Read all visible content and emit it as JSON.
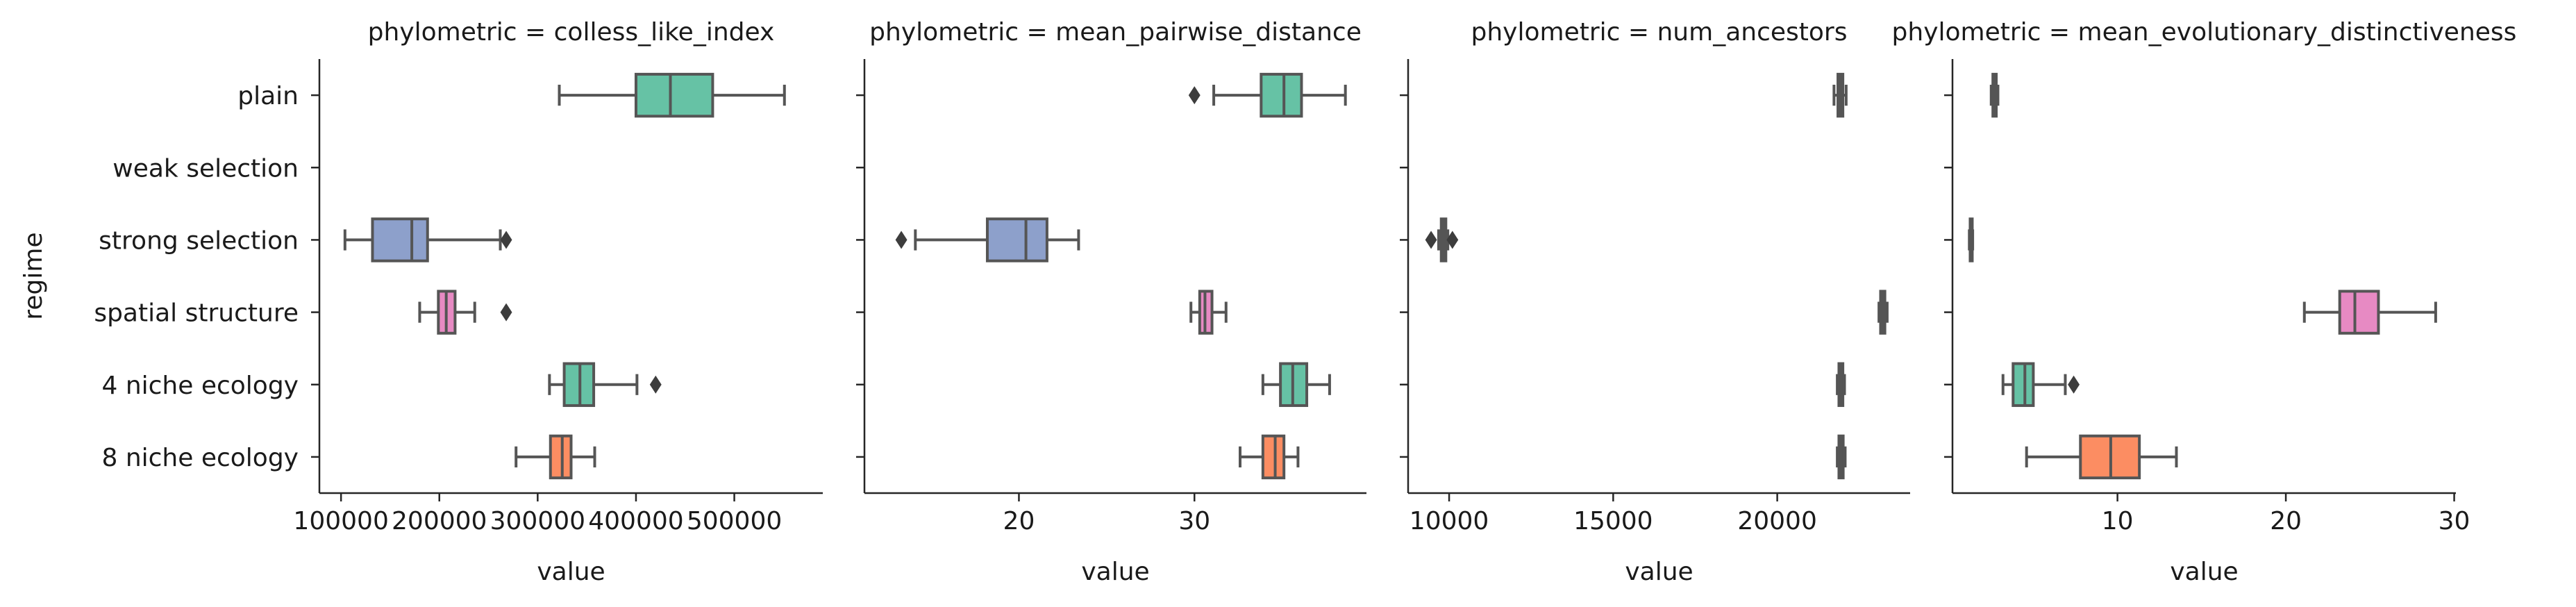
{
  "chart_data": {
    "type": "box",
    "y_axis_label": "regime",
    "categories": [
      "plain",
      "weak selection",
      "strong selection",
      "spatial structure",
      "4 niche ecology",
      "8 niche ecology"
    ],
    "category_colors": {
      "plain": "#66c2a5",
      "weak selection": "#fc8d62",
      "strong selection": "#8da0cb",
      "spatial structure": "#e78ac3",
      "4 niche ecology": "#66c2a5",
      "8 niche ecology": "#fc8d62"
    },
    "panels": [
      {
        "title": "phylometric = colless_like_index",
        "xlabel": "value",
        "xlim": [
          78000,
          590000
        ],
        "xticks": [
          100000,
          200000,
          300000,
          400000,
          500000
        ],
        "xtick_labels": [
          "100000",
          "200000",
          "300000",
          "400000",
          "500000"
        ],
        "boxes": [
          {
            "category": "plain",
            "whislo": 322000,
            "q1": 400000,
            "med": 435000,
            "q3": 478000,
            "whishi": 551000,
            "fliers": []
          },
          {
            "category": "strong selection",
            "whislo": 104000,
            "q1": 132000,
            "med": 172000,
            "q3": 188000,
            "whishi": 262000,
            "fliers": [
              268000
            ]
          },
          {
            "category": "spatial structure",
            "whislo": 180000,
            "q1": 199000,
            "med": 207000,
            "q3": 216000,
            "whishi": 236000,
            "fliers": [
              268000
            ]
          },
          {
            "category": "4 niche ecology",
            "whislo": 312000,
            "q1": 327000,
            "med": 343000,
            "q3": 357000,
            "whishi": 401000,
            "fliers": [
              420000
            ]
          },
          {
            "category": "8 niche ecology",
            "whislo": 278000,
            "q1": 313000,
            "med": 325000,
            "q3": 334000,
            "whishi": 358000,
            "fliers": []
          }
        ]
      },
      {
        "title": "phylometric = mean_pairwise_distance",
        "xlabel": "value",
        "xlim": [
          11.2,
          39.8
        ],
        "xticks": [
          20,
          30
        ],
        "xtick_labels": [
          "20",
          "30"
        ],
        "boxes": [
          {
            "category": "plain",
            "whislo": 31.1,
            "q1": 33.8,
            "med": 35.1,
            "q3": 36.1,
            "whishi": 38.6,
            "fliers": [
              30.0
            ]
          },
          {
            "category": "strong selection",
            "whislo": 14.1,
            "q1": 18.2,
            "med": 20.4,
            "q3": 21.6,
            "whishi": 23.4,
            "fliers": [
              13.3
            ]
          },
          {
            "category": "spatial structure",
            "whislo": 29.8,
            "q1": 30.3,
            "med": 30.6,
            "q3": 31.0,
            "whishi": 31.8,
            "fliers": []
          },
          {
            "category": "4 niche ecology",
            "whislo": 33.9,
            "q1": 34.9,
            "med": 35.6,
            "q3": 36.4,
            "whishi": 37.7,
            "fliers": []
          },
          {
            "category": "8 niche ecology",
            "whislo": 32.6,
            "q1": 33.9,
            "med": 34.6,
            "q3": 35.1,
            "whishi": 35.9,
            "fliers": []
          }
        ]
      },
      {
        "title": "phylometric = num_ancestors",
        "xlabel": "value",
        "xlim": [
          8750,
          24050
        ],
        "xticks": [
          10000,
          15000,
          20000
        ],
        "xtick_labels": [
          "10000",
          "15000",
          "20000"
        ],
        "boxes": [
          {
            "category": "plain",
            "whislo": 21730,
            "q1": 21850,
            "med": 21930,
            "q3": 22000,
            "whishi": 22100,
            "fliers": []
          },
          {
            "category": "strong selection",
            "whislo": 9680,
            "q1": 9760,
            "med": 9830,
            "q3": 9900,
            "whishi": 9960,
            "fliers": [
              9450,
              10100
            ]
          },
          {
            "category": "spatial structure",
            "whislo": 23100,
            "q1": 23150,
            "med": 23220,
            "q3": 23280,
            "whishi": 23350,
            "fliers": []
          },
          {
            "category": "4 niche ecology",
            "whislo": 21830,
            "q1": 21880,
            "med": 21940,
            "q3": 22000,
            "whishi": 22050,
            "fliers": []
          },
          {
            "category": "8 niche ecology",
            "whislo": 21830,
            "q1": 21880,
            "med": 21940,
            "q3": 22010,
            "whishi": 22070,
            "fliers": []
          }
        ]
      },
      {
        "title": "phylometric = mean_evolutionary_distinctiveness",
        "xlabel": "value",
        "xlim": [
          0.2,
          30.1
        ],
        "xticks": [
          10,
          20,
          30
        ],
        "xtick_labels": [
          "10",
          "20",
          "30"
        ],
        "boxes": [
          {
            "category": "plain",
            "whislo": 2.5,
            "q1": 2.6,
            "med": 2.7,
            "q3": 2.8,
            "whishi": 2.9,
            "fliers": []
          },
          {
            "category": "strong selection",
            "whislo": 1.2,
            "q1": 1.25,
            "med": 1.3,
            "q3": 1.35,
            "whishi": 1.4,
            "fliers": []
          },
          {
            "category": "spatial structure",
            "whislo": 21.1,
            "q1": 23.2,
            "med": 24.1,
            "q3": 25.5,
            "whishi": 28.9,
            "fliers": []
          },
          {
            "category": "4 niche ecology",
            "whislo": 3.2,
            "q1": 3.8,
            "med": 4.5,
            "q3": 5.0,
            "whishi": 6.9,
            "fliers": [
              7.4
            ]
          },
          {
            "category": "8 niche ecology",
            "whislo": 4.6,
            "q1": 7.8,
            "med": 9.6,
            "q3": 11.3,
            "whishi": 13.5,
            "fliers": []
          }
        ]
      }
    ]
  }
}
